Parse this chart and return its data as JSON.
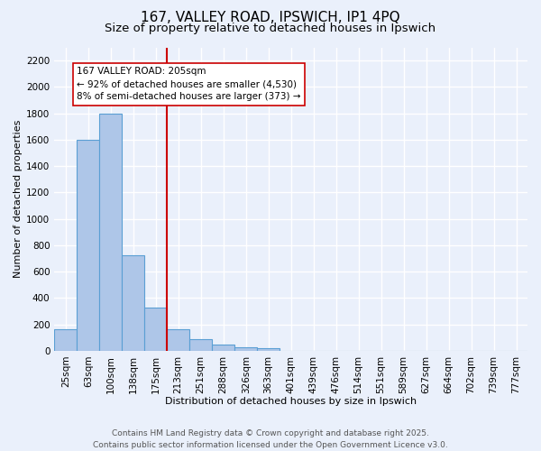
{
  "title_line1": "167, VALLEY ROAD, IPSWICH, IP1 4PQ",
  "title_line2": "Size of property relative to detached houses in Ipswich",
  "xlabel": "Distribution of detached houses by size in Ipswich",
  "ylabel": "Number of detached properties",
  "categories": [
    "25sqm",
    "63sqm",
    "100sqm",
    "138sqm",
    "175sqm",
    "213sqm",
    "251sqm",
    "288sqm",
    "326sqm",
    "363sqm",
    "401sqm",
    "439sqm",
    "476sqm",
    "514sqm",
    "551sqm",
    "589sqm",
    "627sqm",
    "664sqm",
    "702sqm",
    "739sqm",
    "777sqm"
  ],
  "values": [
    160,
    1600,
    1800,
    725,
    325,
    160,
    90,
    50,
    25,
    20,
    0,
    0,
    0,
    0,
    0,
    0,
    0,
    0,
    0,
    0,
    0
  ],
  "bar_color": "#aec6e8",
  "bar_edge_color": "#5a9fd4",
  "vline_x_index": 4.5,
  "vline_color": "#cc0000",
  "annotation_text": "167 VALLEY ROAD: 205sqm\n← 92% of detached houses are smaller (4,530)\n8% of semi-detached houses are larger (373) →",
  "annotation_box_color": "#cc0000",
  "ylim": [
    0,
    2300
  ],
  "yticks": [
    0,
    200,
    400,
    600,
    800,
    1000,
    1200,
    1400,
    1600,
    1800,
    2000,
    2200
  ],
  "background_color": "#eaf0fb",
  "grid_color": "#ffffff",
  "footer_line1": "Contains HM Land Registry data © Crown copyright and database right 2025.",
  "footer_line2": "Contains public sector information licensed under the Open Government Licence v3.0.",
  "title_fontsize": 11,
  "subtitle_fontsize": 9.5,
  "axis_label_fontsize": 8,
  "tick_fontsize": 7.5,
  "annotation_fontsize": 7.5,
  "footer_fontsize": 6.5
}
